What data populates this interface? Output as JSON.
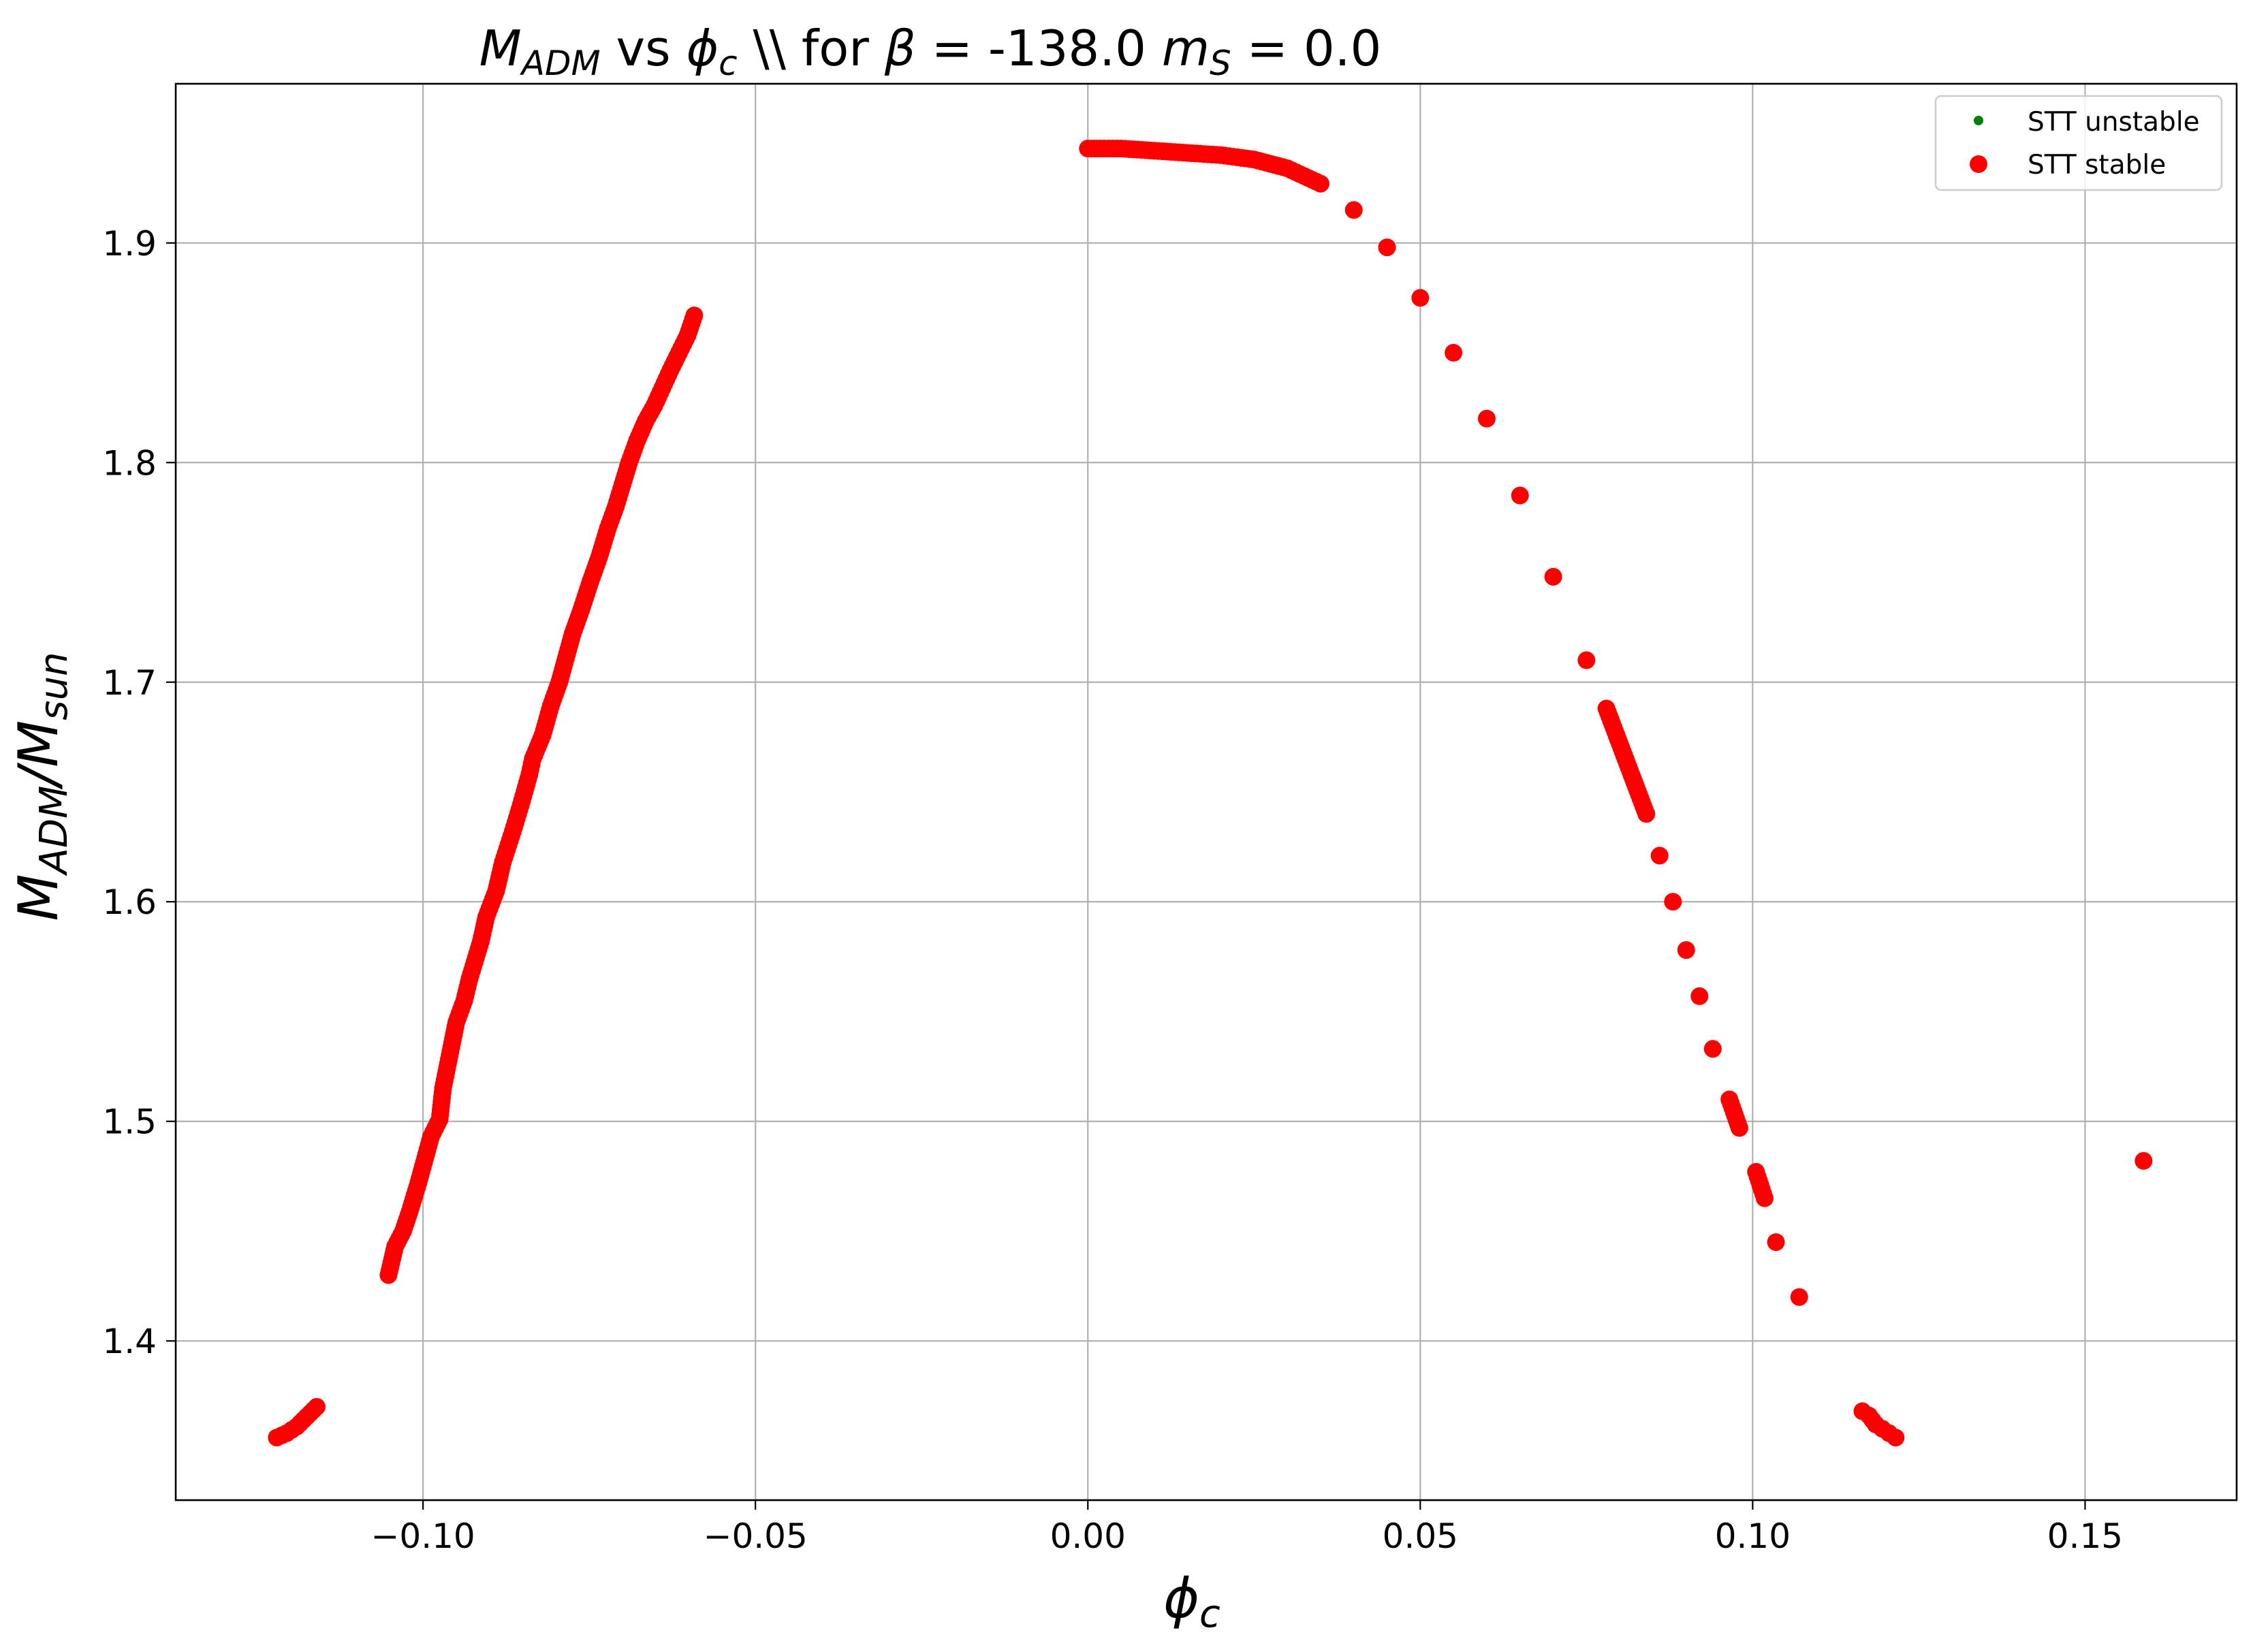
{
  "chart_data": {
    "type": "scatter",
    "title": "$M_{ADM}$ vs $\\phi_c$ \\\\ for $\\beta=$-138.0 $m_S=0.0$",
    "title_parts": {
      "m": "M",
      "m_sub": "ADM",
      "vs": " vs ",
      "phi": "ϕ",
      "phi_sub": "c",
      "mid": " \\\\ for ",
      "beta": "β",
      "eq1": " = ",
      "beta_val": "-138.0 ",
      "ms": "m",
      "ms_sub": "S",
      "eq2": " = ",
      "ms_val": "0.0"
    },
    "xlabel": "ϕc",
    "xlabel_parts": {
      "main": "ϕ",
      "sub": "c"
    },
    "ylabel": "M_ADM/M_sun",
    "ylabel_parts": {
      "m1": "M",
      "sub1": "ADM",
      "slash": "/M",
      "sub2": "sun"
    },
    "xlim": [
      -0.1372,
      0.1728
    ],
    "ylim": [
      1.3275,
      1.9725
    ],
    "xticks": [
      -0.1,
      -0.05,
      0.0,
      0.05,
      0.1,
      0.15
    ],
    "xtick_labels": [
      "−0.10",
      "−0.05",
      "0.00",
      "0.05",
      "0.10",
      "0.15"
    ],
    "yticks": [
      1.4,
      1.5,
      1.6,
      1.7,
      1.8,
      1.9
    ],
    "ytick_labels": [
      "1.4",
      "1.5",
      "1.6",
      "1.7",
      "1.8",
      "1.9"
    ],
    "grid": true,
    "legend_position": "top-right",
    "series": [
      {
        "name": "STT unstable",
        "color": "#008000",
        "marker": "small-dot",
        "x": [],
        "y": []
      },
      {
        "name": "STT stable",
        "color": "#ff0000",
        "marker": "dot",
        "segments": [
          {
            "x": [
              -0.122,
              -0.1205,
              -0.119,
              -0.116
            ],
            "y": [
              1.356,
              1.358,
              1.361,
              1.37
            ]
          },
          {
            "x": [
              -0.1052,
              -0.1042,
              -0.103,
              -0.102,
              -0.1007,
              -0.0997,
              -0.0988,
              -0.0975,
              -0.097,
              -0.096,
              -0.095,
              -0.0938,
              -0.093,
              -0.0913,
              -0.0905,
              -0.089,
              -0.088,
              -0.0865,
              -0.0853,
              -0.084,
              -0.0835,
              -0.082,
              -0.0808,
              -0.0795,
              -0.0785,
              -0.0775,
              -0.0762,
              -0.0748,
              -0.0735,
              -0.0722,
              -0.071,
              -0.07,
              -0.069,
              -0.0678,
              -0.0665,
              -0.0652,
              -0.064,
              -0.0628,
              -0.0615,
              -0.0602,
              -0.0592
            ],
            "y": [
              1.43,
              1.443,
              1.45,
              1.459,
              1.472,
              1.483,
              1.493,
              1.501,
              1.515,
              1.53,
              1.545,
              1.555,
              1.565,
              1.582,
              1.593,
              1.605,
              1.618,
              1.632,
              1.644,
              1.658,
              1.665,
              1.676,
              1.689,
              1.7,
              1.711,
              1.722,
              1.733,
              1.746,
              1.757,
              1.77,
              1.78,
              1.79,
              1.8,
              1.81,
              1.819,
              1.826,
              1.834,
              1.842,
              1.85,
              1.858,
              1.867
            ]
          },
          {
            "x": [
              0.0,
              0.005,
              0.01,
              0.015,
              0.02,
              0.025,
              0.03,
              0.035,
              0.04,
              0.045,
              0.05,
              0.055,
              0.06,
              0.065,
              0.07,
              0.075,
              0.078,
              0.08,
              0.082,
              0.084,
              0.086,
              0.088,
              0.09,
              0.092,
              0.094,
              0.0965,
              0.098,
              0.1005,
              0.1018,
              0.1035,
              0.107
            ],
            "y": [
              1.943,
              1.943,
              1.942,
              1.941,
              1.94,
              1.938,
              1.934,
              1.927,
              1.915,
              1.898,
              1.875,
              1.85,
              1.82,
              1.785,
              1.748,
              1.71,
              1.688,
              1.672,
              1.656,
              1.64,
              1.621,
              1.6,
              1.578,
              1.557,
              1.533,
              1.51,
              1.497,
              1.477,
              1.465,
              1.445,
              1.42
            ]
          },
          {
            "x": [
              0.1165,
              0.1175,
              0.1185,
              0.1195,
              0.1205,
              0.1215
            ],
            "y": [
              1.368,
              1.366,
              1.362,
              1.36,
              1.358,
              1.356
            ]
          },
          {
            "x": [
              0.1588
            ],
            "y": [
              1.482
            ]
          }
        ]
      }
    ]
  }
}
